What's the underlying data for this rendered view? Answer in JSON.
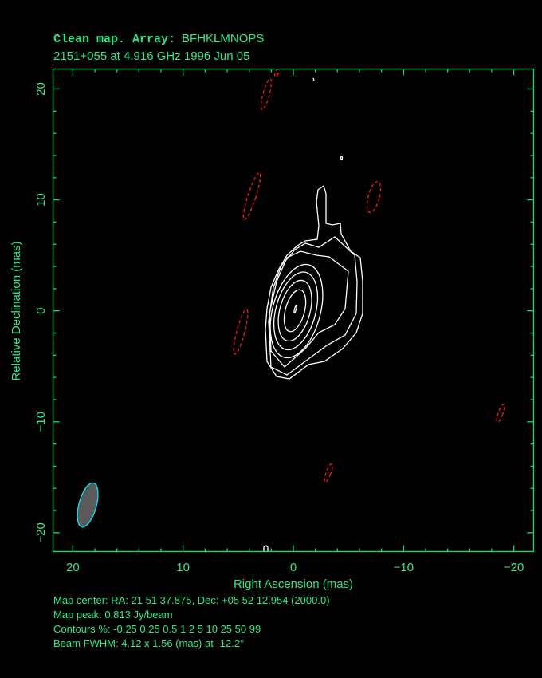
{
  "header": {
    "title_line1_prefix": "Clean map.  Array:",
    "title_line1_array": "BFHKLMNOPS",
    "title_line2": "2151+055 at 4.916 GHz 1996 Jun 05"
  },
  "footer": {
    "map_center": "Map center:  RA: 21 51 37.875,  Dec: +05 52 12.954 (2000.0)",
    "map_peak": "Map peak: 0.813 Jy/beam",
    "contours": "Contours %: -0.25 0.25 0.5 1 2 5 10 25 50 99",
    "beam": "Beam FWHM: 4.12 x 1.56 (mas) at -12.2°"
  },
  "chart_data": {
    "type": "contour",
    "xlabel": "Right Ascension  (mas)",
    "ylabel": "Relative Declination  (mas)",
    "xlim": [
      21.8,
      -21.8
    ],
    "ylim": [
      -21.7,
      21.8
    ],
    "xticks": [
      20,
      10,
      0,
      -10,
      -20
    ],
    "yticks": [
      20,
      10,
      0,
      -10,
      -20
    ],
    "xtick_labels": [
      "20",
      "10",
      "0",
      "−10",
      "−20"
    ],
    "ytick_labels": [
      "20",
      "10",
      "0",
      "−10",
      "−20"
    ],
    "minor_tick_step": 2,
    "grid": false,
    "contour_levels_percent": [
      -0.25,
      0.25,
      0.5,
      1,
      2,
      5,
      10,
      25,
      50,
      99
    ],
    "peak_jy_per_beam": 0.813,
    "peak_position_mas": [
      0,
      0
    ],
    "beam": {
      "major_mas": 4.12,
      "minor_mas": 1.56,
      "pa_deg": -12.2,
      "position_mas": [
        18.7,
        -17.7
      ]
    },
    "colors": {
      "axes": "#00e676",
      "positive_contours": "#ffffff",
      "negative_contours": "#ff1a1a",
      "beam_fill": "#5a5a5a",
      "beam_edge": "#00e5ff",
      "background": "#000000"
    }
  }
}
